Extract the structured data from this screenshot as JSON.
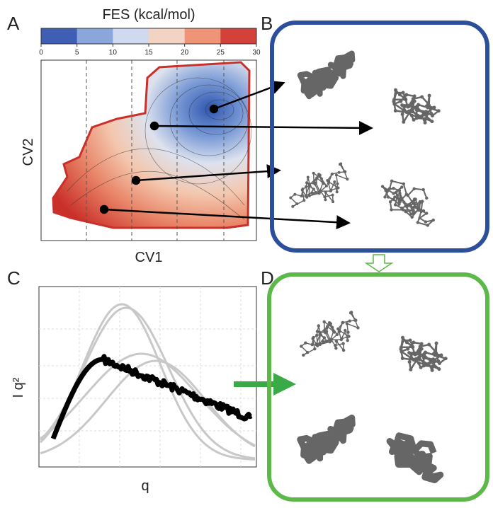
{
  "panels": {
    "a": "A",
    "b": "B",
    "c": "C",
    "d": "D"
  },
  "colorbar": {
    "title": "FES (kcal/mol)",
    "ticks": [
      "0",
      "5",
      "10",
      "15",
      "20",
      "25",
      "30"
    ]
  },
  "fes_plot": {
    "x_label": "CV1",
    "y_label": "CV2"
  },
  "saxs_plot": {
    "x_label": "q",
    "y_label": "I q²"
  }
}
